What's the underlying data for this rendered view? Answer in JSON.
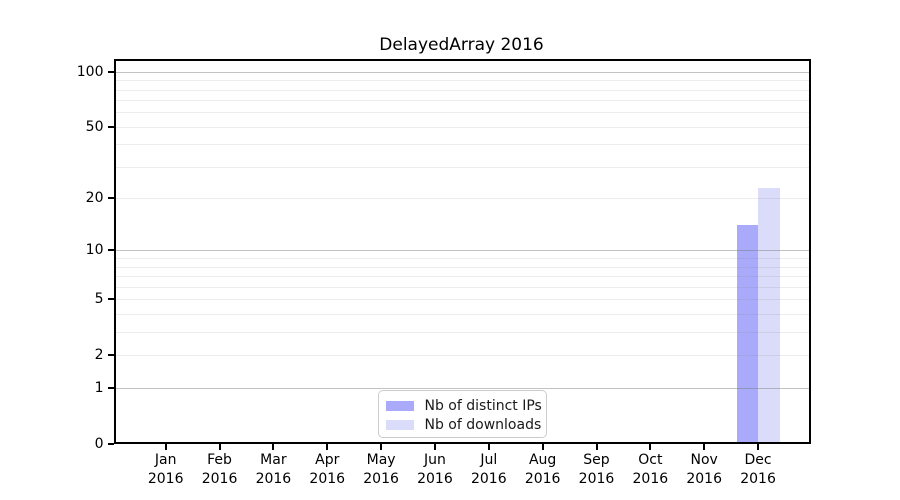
{
  "chart_data": {
    "type": "bar",
    "title": "DelayedArray 2016",
    "x_axis": {
      "months": [
        "Jan",
        "Feb",
        "Mar",
        "Apr",
        "May",
        "Jun",
        "Jul",
        "Aug",
        "Sep",
        "Oct",
        "Nov",
        "Dec"
      ],
      "year": "2016"
    },
    "y_axis": {
      "scale": "log(1+y)",
      "tick_values": [
        0,
        1,
        2,
        5,
        10,
        20,
        50,
        100
      ],
      "major_gridline_values": [
        1,
        10,
        100
      ],
      "minor_gridline_values": [
        2,
        3,
        4,
        5,
        6,
        7,
        8,
        9,
        20,
        30,
        40,
        50,
        60,
        70,
        80,
        90
      ],
      "max": 100
    },
    "series": [
      {
        "name": "Nb of distinct IPs",
        "color": "#aaaafb",
        "values": [
          0,
          0,
          0,
          0,
          0,
          0,
          0,
          0,
          0,
          0,
          0,
          14
        ]
      },
      {
        "name": "Nb of downloads",
        "color": "#dbdbfa",
        "values": [
          0,
          0,
          0,
          0,
          0,
          0,
          0,
          0,
          0,
          0,
          0,
          23
        ]
      }
    ],
    "legend": {
      "position": "bottom-center"
    }
  },
  "colors": {
    "background": "#ffffff",
    "spine": "#000000",
    "grid_major": "rgba(120,120,120,0.45)",
    "grid_minor": "rgba(120,120,120,0.14)",
    "text": "#000000",
    "legend_border": "#cccccc"
  }
}
